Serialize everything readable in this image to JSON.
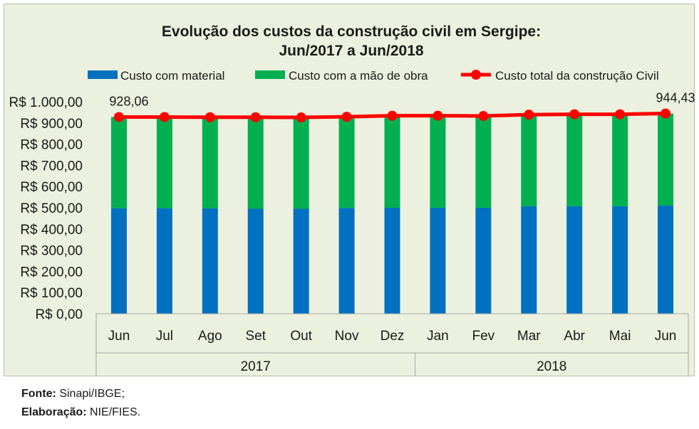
{
  "chart_data": {
    "type": "bar",
    "stacked": true,
    "title_lines": [
      "Evolução  dos custos da construção  civil em Sergipe:",
      "Jun/2017  a Jun/2018"
    ],
    "categories": [
      "Jun",
      "Jul",
      "Ago",
      "Set",
      "Out",
      "Nov",
      "Dez",
      "Jan",
      "Fev",
      "Mar",
      "Abr",
      "Mai",
      "Jun"
    ],
    "year_groups": [
      {
        "label": "2017",
        "count": 7
      },
      {
        "label": "2018",
        "count": 6
      }
    ],
    "series": [
      {
        "name": "Custo com material",
        "kind": "bar",
        "color": "#0070c0",
        "values": [
          497,
          497,
          497,
          495,
          495,
          499,
          500,
          500,
          500,
          507,
          507,
          507,
          510
        ]
      },
      {
        "name": "Custo com a mão de obra",
        "kind": "bar",
        "color": "#00b050",
        "values": [
          431.06,
          431,
          430,
          432,
          431,
          430,
          434,
          434,
          433,
          432,
          434,
          434,
          434.43
        ]
      },
      {
        "name": "Custo total da construção Civil",
        "kind": "line",
        "color": "#ff0000",
        "values": [
          928.06,
          928,
          927,
          927,
          926,
          929,
          934,
          934,
          933,
          939,
          941,
          941,
          944.43
        ]
      }
    ],
    "data_labels": [
      {
        "series": 2,
        "index": 0,
        "text": "928,06"
      },
      {
        "series": 2,
        "index": 12,
        "text": "944,43"
      }
    ],
    "y_ticks": [
      "R$ 0,00",
      "R$ 100,00",
      "R$ 200,00",
      "R$ 300,00",
      "R$ 400,00",
      "R$ 500,00",
      "R$ 600,00",
      "R$ 700,00",
      "R$ 800,00",
      "R$ 900,00",
      "R$ 1.000,00"
    ],
    "ylim": [
      0,
      1000
    ],
    "ystep": 100,
    "legend_position": "top",
    "grid": false
  },
  "source": {
    "fonte_label": "Fonte:",
    "fonte_text": " Sinapi/IBGE;",
    "elab_label": "Elaboração:",
    "elab_text": "  NIE/FIES."
  }
}
